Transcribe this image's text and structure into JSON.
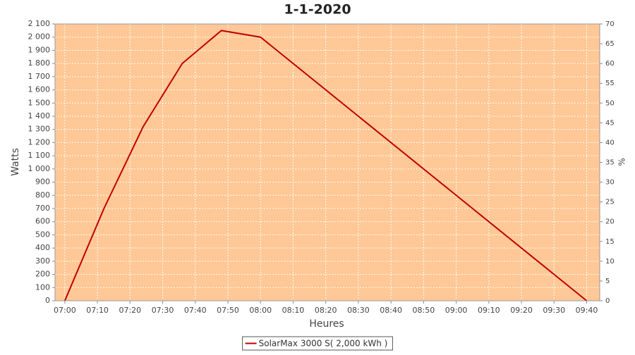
{
  "chart_data": {
    "type": "line",
    "title": "1-1-2020",
    "x_label": "Heures",
    "y_label": "Watts",
    "y2_label": "%",
    "x": [
      "07:00",
      "07:12",
      "07:24",
      "07:36",
      "07:48",
      "08:00",
      "09:40"
    ],
    "series": [
      {
        "name": "SolarMax 3000 S( 2,000 kWh )",
        "color": "#c00000",
        "values": [
          0,
          700,
          1320,
          1800,
          2050,
          2000,
          0
        ]
      }
    ],
    "xlim": [
      "06:57",
      "09:44"
    ],
    "xticks": [
      "07:00",
      "07:10",
      "07:20",
      "07:30",
      "07:40",
      "07:50",
      "08:00",
      "08:10",
      "08:20",
      "08:30",
      "08:40",
      "08:50",
      "09:00",
      "09:10",
      "09:20",
      "09:30",
      "09:40"
    ],
    "ylim": [
      0,
      2100
    ],
    "yticks": [
      0,
      100,
      200,
      300,
      400,
      500,
      600,
      700,
      800,
      900,
      {
        "value": 1000,
        "label": "1 000"
      },
      {
        "value": 1100,
        "label": "1 100"
      },
      {
        "value": 1200,
        "label": "1 200"
      },
      {
        "value": 1300,
        "label": "1 300"
      },
      {
        "value": 1400,
        "label": "1 400"
      },
      {
        "value": 1500,
        "label": "1 500"
      },
      {
        "value": 1600,
        "label": "1 600"
      },
      {
        "value": 1700,
        "label": "1 700"
      },
      {
        "value": 1800,
        "label": "1 800"
      },
      {
        "value": 1900,
        "label": "1 900"
      },
      {
        "value": 2000,
        "label": "2 000"
      },
      {
        "value": 2100,
        "label": "2 100"
      }
    ],
    "y2lim": [
      0,
      70
    ],
    "y2ticks": [
      0,
      5,
      10,
      15,
      20,
      25,
      30,
      35,
      40,
      45,
      50,
      55,
      60,
      65,
      70
    ],
    "grid": true,
    "background": "#ffc896",
    "legend": "bottom"
  }
}
